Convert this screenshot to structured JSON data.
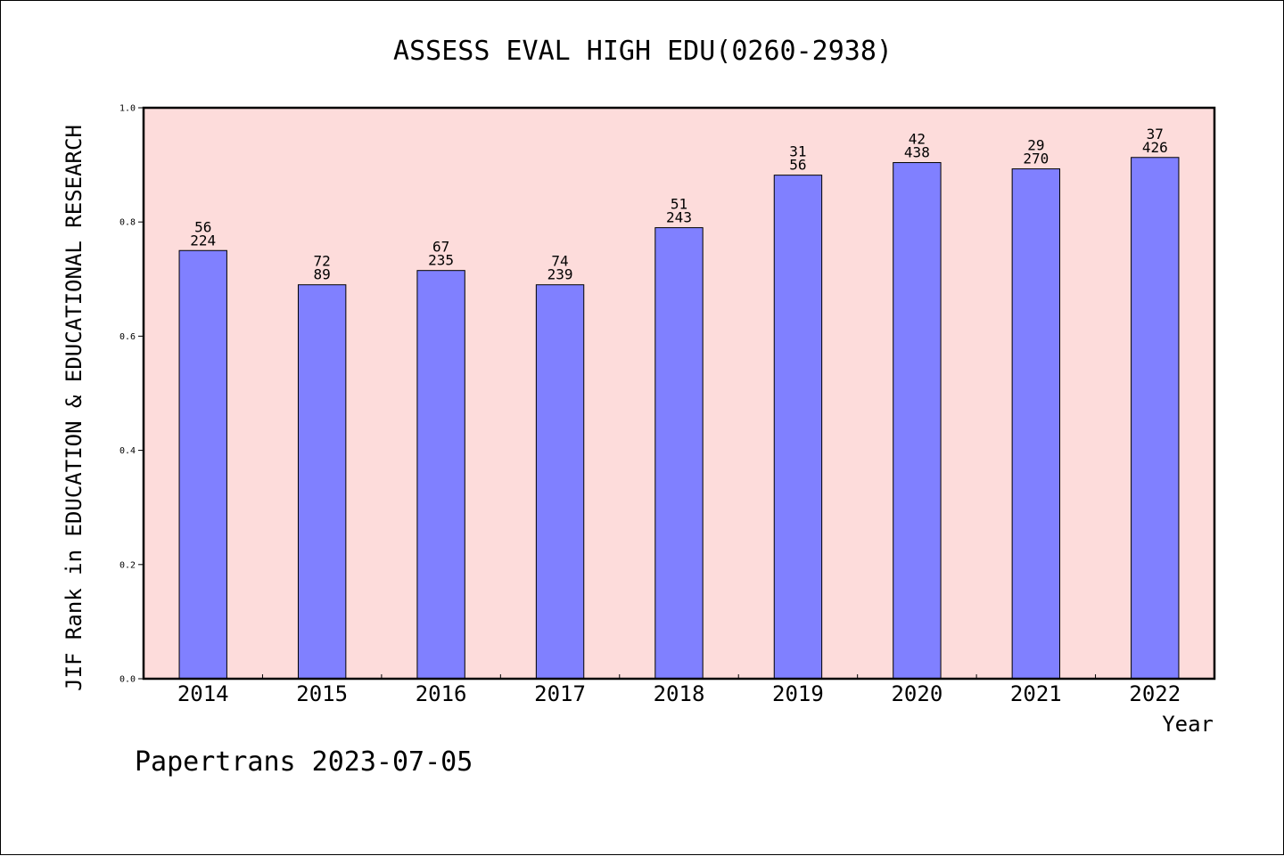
{
  "chart_data": {
    "type": "bar",
    "title": "ASSESS EVAL HIGH EDU(0260-2938)",
    "xlabel": "Year",
    "ylabel": "JIF Rank in EDUCATION & EDUCATIONAL RESEARCH",
    "categories": [
      "2014",
      "2015",
      "2016",
      "2017",
      "2018",
      "2019",
      "2020",
      "2021",
      "2022"
    ],
    "values": [
      0.75,
      0.69,
      0.715,
      0.69,
      0.79,
      0.882,
      0.904,
      0.893,
      0.913
    ],
    "rank_labels": [
      "56",
      "72",
      "67",
      "74",
      "51",
      "31",
      "42",
      "29",
      "37"
    ],
    "total_labels": [
      "224",
      "89",
      "235",
      "239",
      "243",
      "56",
      "438",
      "270",
      "426"
    ],
    "ylim": [
      0,
      1.0
    ],
    "yticks": [
      "0.0",
      "0.2",
      "0.4",
      "0.6",
      "0.8",
      "1.0"
    ],
    "grid": false,
    "plot_background": "#fddcdb",
    "bar_color": "#8080ff"
  },
  "footer": "Papertrans 2023-07-05"
}
